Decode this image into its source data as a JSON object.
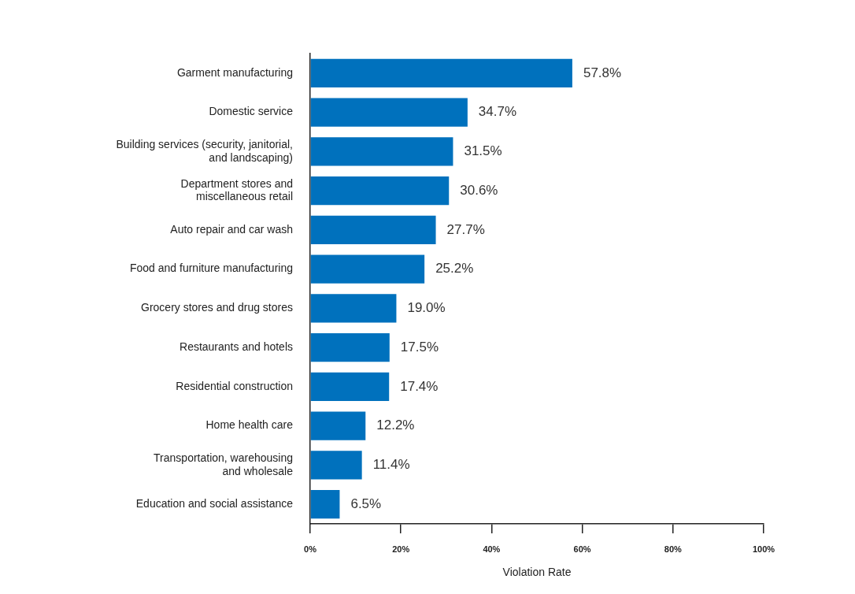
{
  "chart_data": {
    "type": "bar",
    "orientation": "horizontal",
    "xlabel": "Violation Rate",
    "categories": [
      "Garment manufacturing",
      "Domestic service",
      "Building services (security, janitorial,\nand landscaping)",
      "Department stores and\nmiscellaneous retail",
      "Auto repair and car wash",
      "Food and furniture manufacturing",
      "Grocery stores and drug stores",
      "Restaurants and hotels",
      "Residential construction",
      "Home health care",
      "Transportation, warehousing\nand wholesale",
      "Education and social assistance"
    ],
    "values": [
      57.8,
      34.7,
      31.5,
      30.6,
      27.7,
      25.2,
      19.0,
      17.5,
      17.4,
      12.2,
      11.4,
      6.5
    ],
    "value_labels": [
      "57.8%",
      "34.7%",
      "31.5%",
      "30.6%",
      "27.7%",
      "25.2%",
      "19.0%",
      "17.5%",
      "17.4%",
      "12.2%",
      "11.4%",
      "6.5%"
    ],
    "color": "#0071bd",
    "xlim": [
      0,
      100
    ],
    "xticks": [
      {
        "value": 0,
        "label": "0%"
      },
      {
        "value": 20,
        "label": "20%"
      },
      {
        "value": 40,
        "label": "40%"
      },
      {
        "value": 60,
        "label": "60%"
      },
      {
        "value": 80,
        "label": "80%"
      },
      {
        "value": 100,
        "label": "100%"
      }
    ],
    "grid": false,
    "legend": false
  }
}
